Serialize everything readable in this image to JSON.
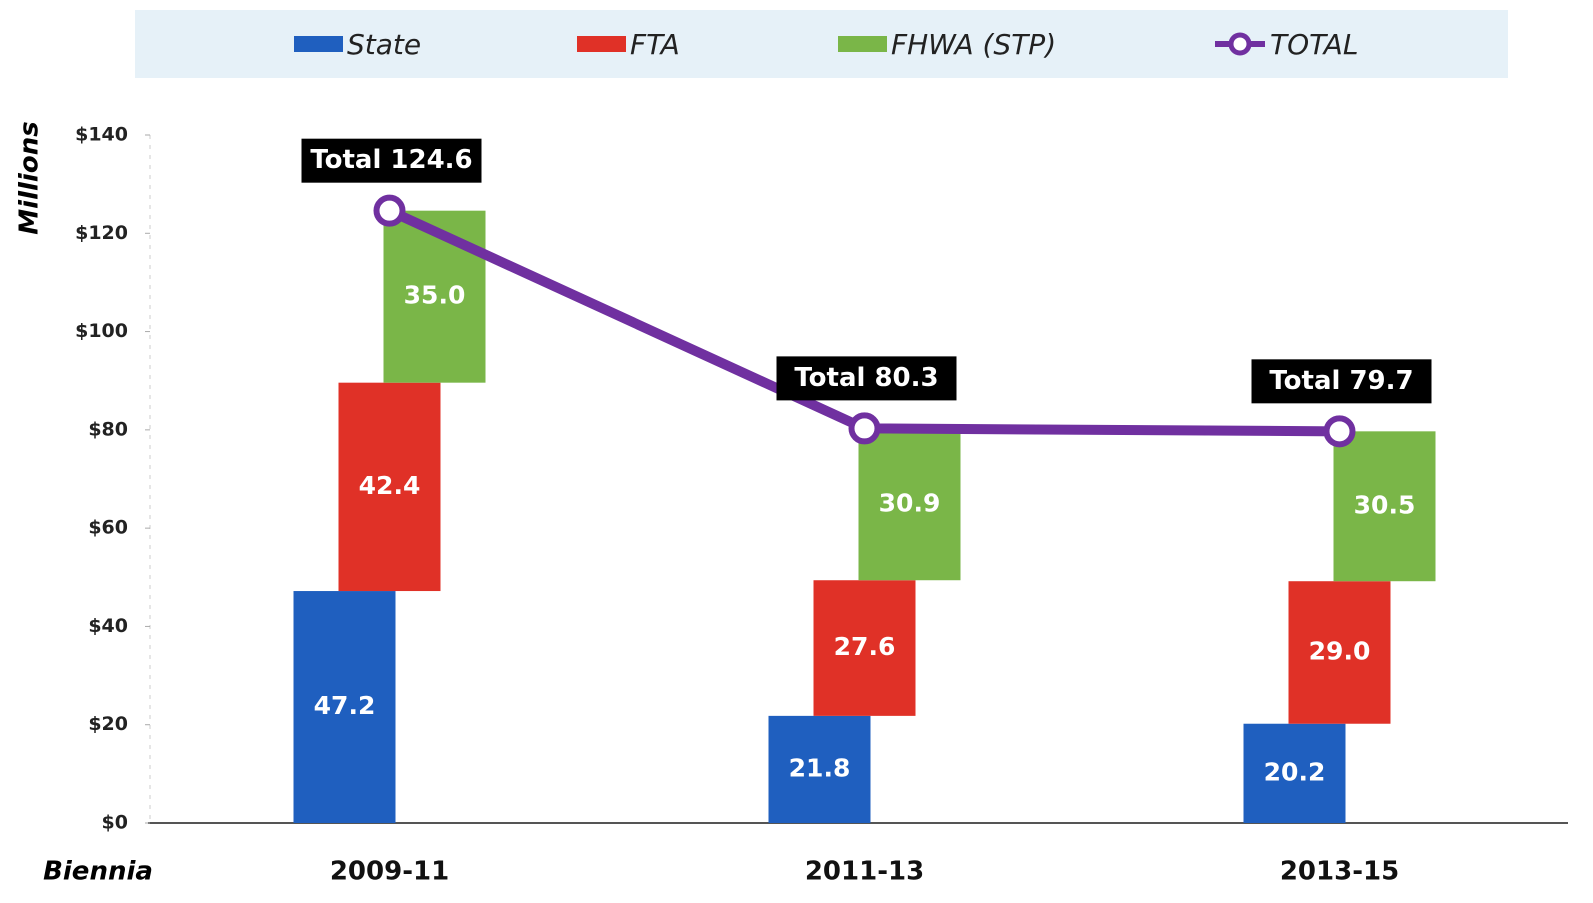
{
  "chart_data": {
    "type": "bar",
    "x_label": "Biennia",
    "y_label": "Millions",
    "categories": [
      "2009-11",
      "2011-13",
      "2013-15"
    ],
    "series": [
      {
        "name": "State",
        "color": "#1f5fbf",
        "values": [
          47.2,
          21.8,
          20.2
        ],
        "value_labels": [
          "47.2",
          "21.8",
          "20.2"
        ]
      },
      {
        "name": "FTA",
        "color": "#e03127",
        "values": [
          42.4,
          27.6,
          29.0
        ],
        "value_labels": [
          "42.4",
          "27.6",
          "29.0"
        ]
      },
      {
        "name": "FHWA (STP)",
        "color": "#7ab648",
        "values": [
          35.0,
          30.9,
          30.5
        ],
        "value_labels": [
          "35.0",
          "30.9",
          "30.5"
        ]
      },
      {
        "name": "TOTAL",
        "type": "line",
        "color": "#7030a0",
        "values": [
          124.6,
          80.3,
          79.7
        ],
        "value_labels": [
          "Total 124.6",
          "Total 80.3",
          "Total 79.7"
        ]
      }
    ],
    "ylim": [
      0,
      140
    ],
    "yticks": [
      {
        "value": 0,
        "label": "$0"
      },
      {
        "value": 20,
        "label": "$20"
      },
      {
        "value": 40,
        "label": "$40"
      },
      {
        "value": 60,
        "label": "$60"
      },
      {
        "value": 80,
        "label": "$80"
      },
      {
        "value": 100,
        "label": "$100"
      },
      {
        "value": 120,
        "label": "$120"
      },
      {
        "value": 140,
        "label": "$140"
      }
    ],
    "legend": "top"
  }
}
